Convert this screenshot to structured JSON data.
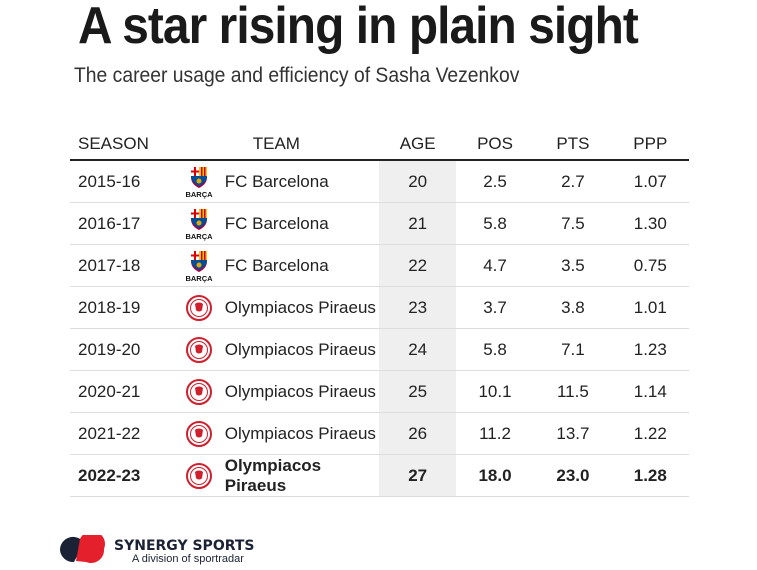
{
  "title": "A star rising in plain sight",
  "subtitle": "The career usage and efficiency of Sasha Vezenkov",
  "chart_data": {
    "type": "table",
    "columns": [
      "SEASON",
      "TEAM",
      "AGE",
      "POS",
      "PTS",
      "PPP"
    ],
    "rows": [
      {
        "season": "2015-16",
        "logo": "barca",
        "team": "FC Barcelona",
        "age": "20",
        "pos": "2.5",
        "pts": "2.7",
        "ppp": "1.07"
      },
      {
        "season": "2016-17",
        "logo": "barca",
        "team": "FC Barcelona",
        "age": "21",
        "pos": "5.8",
        "pts": "7.5",
        "ppp": "1.30"
      },
      {
        "season": "2017-18",
        "logo": "barca",
        "team": "FC Barcelona",
        "age": "22",
        "pos": "4.7",
        "pts": "3.5",
        "ppp": "0.75"
      },
      {
        "season": "2018-19",
        "logo": "oly",
        "team": "Olympiacos Piraeus",
        "age": "23",
        "pos": "3.7",
        "pts": "3.8",
        "ppp": "1.01"
      },
      {
        "season": "2019-20",
        "logo": "oly",
        "team": "Olympiacos Piraeus",
        "age": "24",
        "pos": "5.8",
        "pts": "7.1",
        "ppp": "1.23"
      },
      {
        "season": "2020-21",
        "logo": "oly",
        "team": "Olympiacos Piraeus",
        "age": "25",
        "pos": "10.1",
        "pts": "11.5",
        "ppp": "1.14"
      },
      {
        "season": "2021-22",
        "logo": "oly",
        "team": "Olympiacos Piraeus",
        "age": "26",
        "pos": "11.2",
        "pts": "13.7",
        "ppp": "1.22"
      },
      {
        "season": "2022-23",
        "logo": "oly",
        "team": "Olympiacos Piraeus",
        "age": "27",
        "pos": "18.0",
        "pts": "23.0",
        "ppp": "1.28"
      }
    ]
  },
  "barca_text": "BARÇA",
  "footer": {
    "brand": "SYNERGY SPORTS",
    "tagline": "A division of sportradar"
  }
}
